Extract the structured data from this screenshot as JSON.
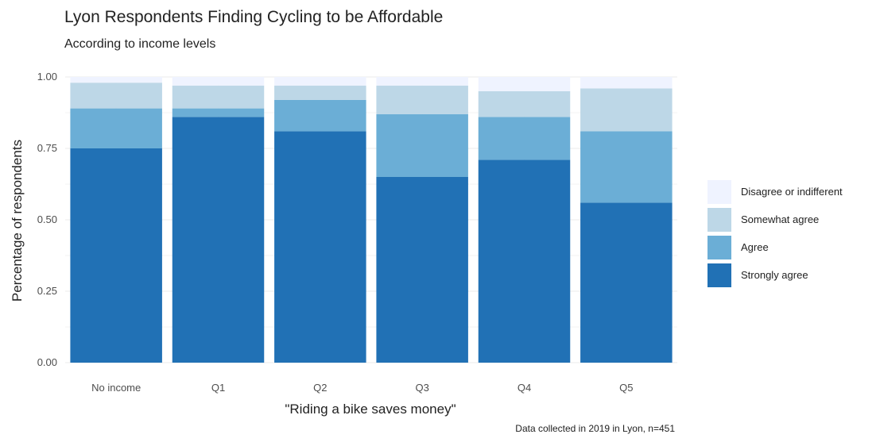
{
  "title": "Lyon Respondents Finding Cycling to be Affordable",
  "subtitle": "According to income levels",
  "caption": "Data collected in 2019 in Lyon, n=451",
  "chart_data": {
    "type": "bar",
    "stacked": true,
    "xlabel": "\"Riding a bike saves money\"",
    "ylabel": "Percentage of respondents",
    "ylim": [
      0,
      1
    ],
    "yticks": [
      "0.00",
      "0.25",
      "0.50",
      "0.75",
      "1.00"
    ],
    "grid": true,
    "legend_position": "right",
    "categories": [
      "No income",
      "Q1",
      "Q2",
      "Q3",
      "Q4",
      "Q5"
    ],
    "series": [
      {
        "name": "Strongly agree",
        "color": "#2171b5",
        "values": [
          0.75,
          0.86,
          0.81,
          0.65,
          0.71,
          0.56
        ]
      },
      {
        "name": "Agree",
        "color": "#6baed6",
        "values": [
          0.14,
          0.03,
          0.11,
          0.22,
          0.15,
          0.25
        ]
      },
      {
        "name": "Somewhat agree",
        "color": "#bdd7e7",
        "values": [
          0.09,
          0.08,
          0.05,
          0.1,
          0.09,
          0.15
        ]
      },
      {
        "name": "Disagree or indifferent",
        "color": "#eff3ff",
        "values": [
          0.02,
          0.03,
          0.03,
          0.03,
          0.05,
          0.04
        ]
      }
    ],
    "legend_order": [
      "Disagree or indifferent",
      "Somewhat agree",
      "Agree",
      "Strongly agree"
    ]
  }
}
